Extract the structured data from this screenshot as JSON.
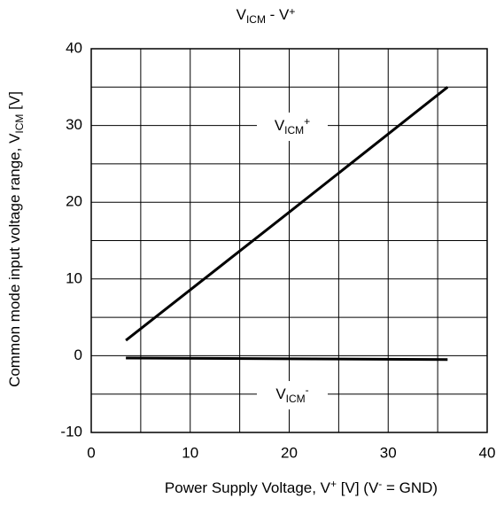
{
  "chart_data": {
    "type": "line",
    "title": [
      "V",
      "ICM",
      " - V",
      "+"
    ],
    "x_label": [
      "Power Supply Voltage, V",
      "+",
      " [V] (V",
      "-",
      " = GND)"
    ],
    "y_label": [
      "Common mode input voltage range, V",
      "ICM",
      " [V]"
    ],
    "xlim": [
      0,
      40
    ],
    "ylim": [
      -10,
      40
    ],
    "xticks": [
      0,
      10,
      20,
      30,
      40
    ],
    "yticks": [
      -10,
      0,
      10,
      20,
      30,
      40
    ],
    "xminor": [
      5,
      15,
      25,
      35
    ],
    "yminor": [
      -5,
      5,
      15,
      25,
      35
    ],
    "grid": true,
    "x": [
      3.5,
      20,
      36
    ],
    "series": [
      {
        "color": "#000000",
        "values": [
          2,
          18.7,
          35
        ]
      },
      {
        "color": "#000000",
        "values": [
          -0.3,
          -0.4,
          -0.5
        ]
      }
    ],
    "annotations": [
      {
        "text": [
          "V",
          "ICM",
          "+"
        ]
      },
      {
        "text": [
          "V",
          "ICM",
          "-"
        ]
      }
    ]
  }
}
